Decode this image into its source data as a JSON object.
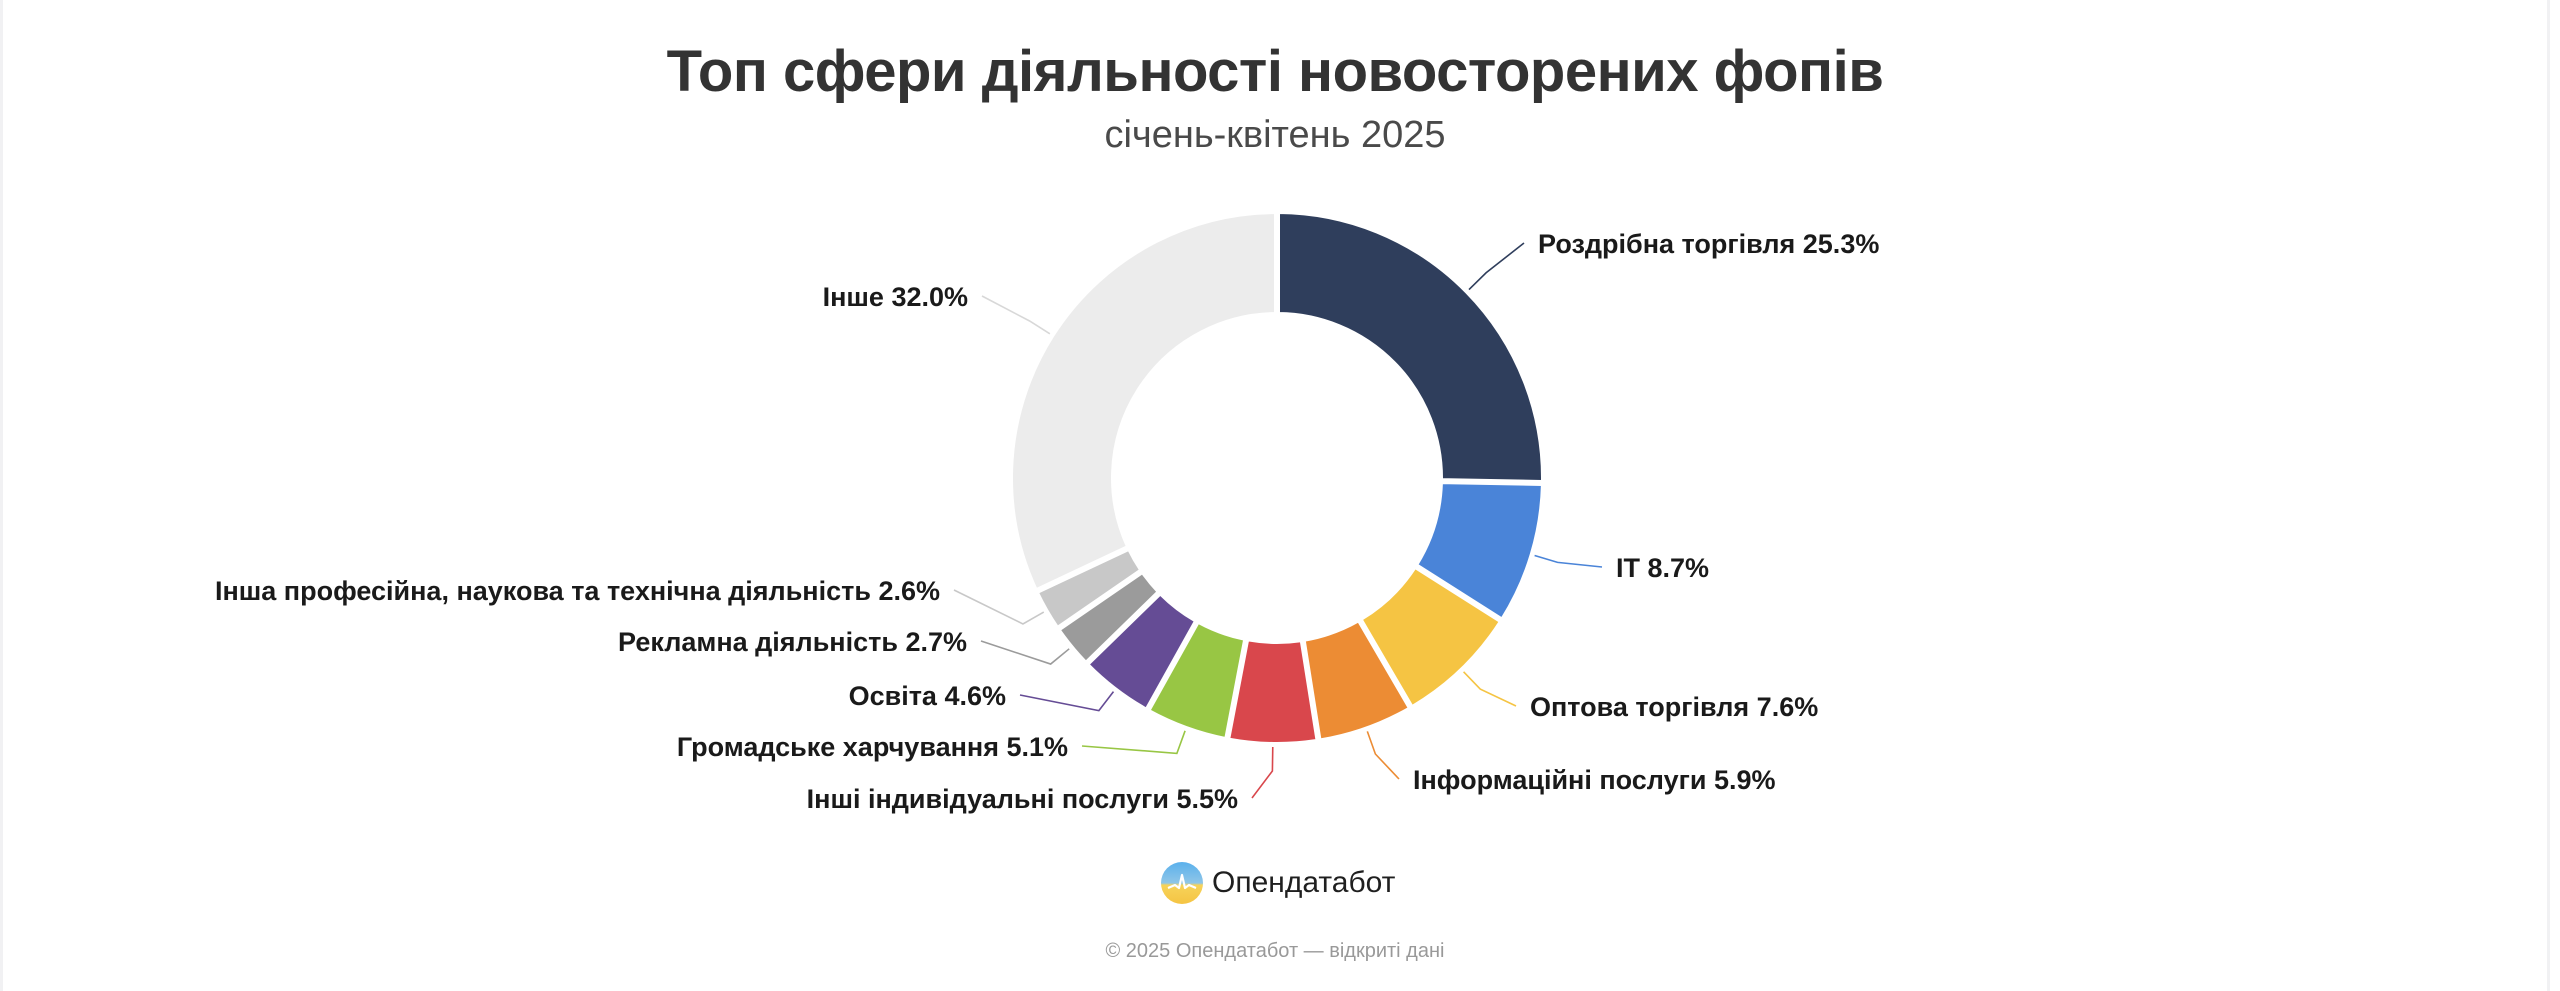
{
  "header": {
    "title": "Топ сфери діяльності новосторених фопів",
    "subtitle": "січень-квітень 2025"
  },
  "brand": {
    "name": "Опендатабот",
    "logo_icon": "opendatabot-logo-icon"
  },
  "footer": {
    "text": "© 2025 Опендатабот — відкриті дані"
  },
  "chart_data": {
    "type": "pie",
    "variant": "donut",
    "title": "Топ сфери діяльності новосторених фопів",
    "subtitle": "січень-квітень 2025",
    "unit": "%",
    "categories": [
      "Роздрібна торгівля",
      "IT",
      "Оптова торгівля",
      "Інформаційні послуги",
      "Інші індивідуальні послуги",
      "Громадське харчування",
      "Освіта",
      "Рекламна діяльність",
      "Інша професійна, наукова та технічна діяльність",
      "Інше"
    ],
    "values": [
      25.3,
      8.7,
      7.6,
      5.9,
      5.5,
      5.1,
      4.6,
      2.7,
      2.6,
      32.0
    ],
    "labels": [
      "Роздрібна торгівля 25.3%",
      "IT 8.7%",
      "Оптова торгівля 7.6%",
      "Інформаційні послуги 5.9%",
      "Інші індивідуальні послуги 5.5%",
      "Громадське харчування 5.1%",
      "Освіта 4.6%",
      "Рекламна діяльність 2.7%",
      "Інша професійна, наукова та технічна діяльність 2.6%",
      "Інше 32.0%"
    ],
    "colors": [
      "#2f3e5c",
      "#4a84d8",
      "#f5c443",
      "#ec8c34",
      "#d9474c",
      "#98c644",
      "#654c95",
      "#9b9b9b",
      "#c8c8c8",
      "#ececec"
    ],
    "start_angle_deg": 0,
    "direction": "clockwise",
    "legend": "none"
  }
}
